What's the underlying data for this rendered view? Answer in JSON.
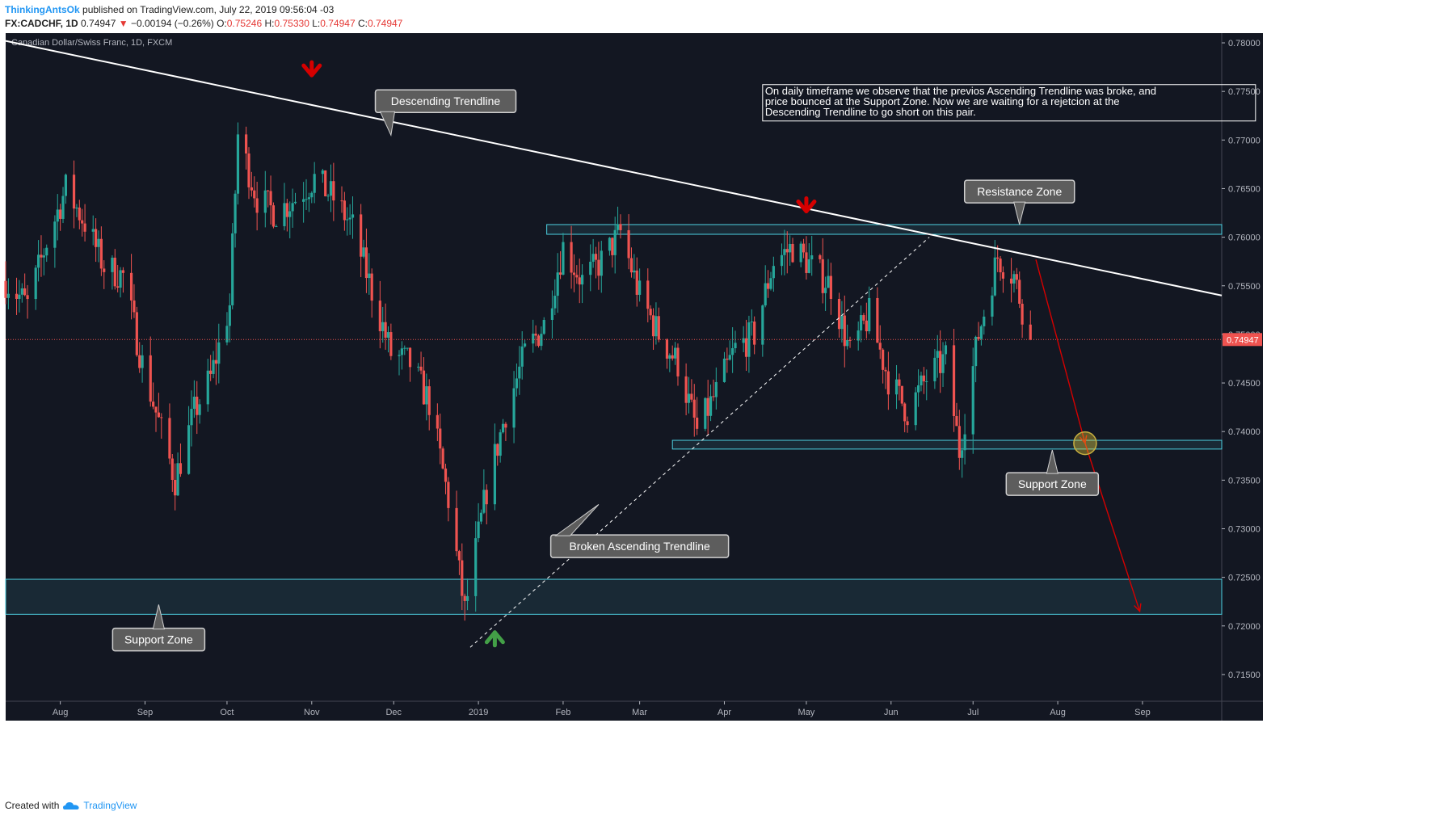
{
  "header": {
    "author": "ThinkingAntsOk",
    "published": "published on TradingView.com, July 22, 2019 09:56:04 -03",
    "symbol": "FX:CADCHF, 1D",
    "last": "0.74947",
    "change": "−0.00194 (−0.26%)",
    "o_label": "O:",
    "o_val": "0.75246",
    "h_label": "H:",
    "h_val": "0.75330",
    "l_label": "L:",
    "l_val": "0.74947",
    "c_label": "C:",
    "c_val": "0.74947"
  },
  "footer": {
    "created": "Created with",
    "brand": "TradingView"
  },
  "colors": {
    "bg": "#131722",
    "up": "#26a69a",
    "down": "#ef5350",
    "zone": "#4dd0e1",
    "trend": "#ffffff",
    "arrow_red": "#d50000",
    "arrow_green": "#43a047",
    "callout_bg": "#5d5d5d",
    "axis": "#b2b5be"
  },
  "chart_data": {
    "type": "candlestick",
    "symbol_title": "Canadian Dollar/Swiss Franc, 1D, FXCM",
    "last_price_label": "0.74947",
    "last_price": 0.74947,
    "ylim": [
      0.7125,
      0.781
    ],
    "y_ticks": [
      {
        "v": 0.78,
        "label": "0.78000"
      },
      {
        "v": 0.775,
        "label": "0.77500"
      },
      {
        "v": 0.77,
        "label": "0.77000"
      },
      {
        "v": 0.765,
        "label": "0.76500"
      },
      {
        "v": 0.76,
        "label": "0.76000"
      },
      {
        "v": 0.755,
        "label": "0.75500"
      },
      {
        "v": 0.75,
        "label": "0.75000"
      },
      {
        "v": 0.745,
        "label": "0.74500"
      },
      {
        "v": 0.74,
        "label": "0.74000"
      },
      {
        "v": 0.735,
        "label": "0.73500"
      },
      {
        "v": 0.73,
        "label": "0.73000"
      },
      {
        "v": 0.725,
        "label": "0.72500"
      },
      {
        "v": 0.72,
        "label": "0.72000"
      },
      {
        "v": 0.715,
        "label": "0.71500"
      }
    ],
    "x_range": [
      "2018-07-12",
      "2019-09-30"
    ],
    "x_ticks": [
      {
        "label": "Aug",
        "date": "2018-08-01"
      },
      {
        "label": "Sep",
        "date": "2018-09-01"
      },
      {
        "label": "Oct",
        "date": "2018-10-01"
      },
      {
        "label": "Nov",
        "date": "2018-11-01"
      },
      {
        "label": "Dec",
        "date": "2018-12-01"
      },
      {
        "label": "2019",
        "date": "2019-01-01"
      },
      {
        "label": "Feb",
        "date": "2019-02-01"
      },
      {
        "label": "Mar",
        "date": "2019-03-01"
      },
      {
        "label": "Apr",
        "date": "2019-04-01"
      },
      {
        "label": "May",
        "date": "2019-05-01"
      },
      {
        "label": "Jun",
        "date": "2019-06-01"
      },
      {
        "label": "Jul",
        "date": "2019-07-01"
      },
      {
        "label": "Aug",
        "date": "2019-08-01"
      },
      {
        "label": "Sep",
        "date": "2019-09-01"
      }
    ],
    "close_path": [
      [
        "2018-07-12",
        0.7555
      ],
      [
        "2018-07-20",
        0.753
      ],
      [
        "2018-07-27",
        0.7595
      ],
      [
        "2018-08-03",
        0.765
      ],
      [
        "2018-08-10",
        0.7615
      ],
      [
        "2018-08-17",
        0.757
      ],
      [
        "2018-08-24",
        0.756
      ],
      [
        "2018-08-31",
        0.747
      ],
      [
        "2018-09-07",
        0.74
      ],
      [
        "2018-09-12",
        0.735
      ],
      [
        "2018-09-19",
        0.742
      ],
      [
        "2018-09-25",
        0.7455
      ],
      [
        "2018-10-02",
        0.753
      ],
      [
        "2018-10-05",
        0.7705
      ],
      [
        "2018-10-12",
        0.764
      ],
      [
        "2018-10-19",
        0.7625
      ],
      [
        "2018-10-26",
        0.764
      ],
      [
        "2018-11-02",
        0.766
      ],
      [
        "2018-11-09",
        0.764
      ],
      [
        "2018-11-16",
        0.761
      ],
      [
        "2018-11-23",
        0.7545
      ],
      [
        "2018-11-30",
        0.748
      ],
      [
        "2018-12-07",
        0.747
      ],
      [
        "2018-12-14",
        0.743
      ],
      [
        "2018-12-21",
        0.733
      ],
      [
        "2018-12-27",
        0.7215
      ],
      [
        "2019-01-04",
        0.734
      ],
      [
        "2019-01-11",
        0.742
      ],
      [
        "2019-01-18",
        0.748
      ],
      [
        "2019-01-25",
        0.751
      ],
      [
        "2019-02-01",
        0.759
      ],
      [
        "2019-02-08",
        0.7555
      ],
      [
        "2019-02-15",
        0.7575
      ],
      [
        "2019-02-22",
        0.7605
      ],
      [
        "2019-03-01",
        0.754
      ],
      [
        "2019-03-08",
        0.75
      ],
      [
        "2019-03-15",
        0.747
      ],
      [
        "2019-03-22",
        0.74
      ],
      [
        "2019-03-29",
        0.744
      ],
      [
        "2019-04-05",
        0.7485
      ],
      [
        "2019-04-12",
        0.75
      ],
      [
        "2019-04-19",
        0.7575
      ],
      [
        "2019-04-26",
        0.759
      ],
      [
        "2019-05-03",
        0.757
      ],
      [
        "2019-05-10",
        0.755
      ],
      [
        "2019-05-17",
        0.748
      ],
      [
        "2019-05-24",
        0.752
      ],
      [
        "2019-05-31",
        0.7455
      ],
      [
        "2019-06-07",
        0.742
      ],
      [
        "2019-06-14",
        0.7455
      ],
      [
        "2019-06-21",
        0.7475
      ],
      [
        "2019-06-26",
        0.738
      ],
      [
        "2019-07-03",
        0.75
      ],
      [
        "2019-07-10",
        0.758
      ],
      [
        "2019-07-16",
        0.756
      ],
      [
        "2019-07-22",
        0.74947
      ]
    ],
    "zones": [
      {
        "name": "resistance-zone",
        "from": "2019-01-26",
        "to": "2019-09-30",
        "y1": 0.7603,
        "y2": 0.7613
      },
      {
        "name": "support-zone-right",
        "from": "2019-03-13",
        "to": "2019-09-30",
        "y1": 0.7382,
        "y2": 0.7391
      },
      {
        "name": "support-zone-left",
        "from": "2018-07-12",
        "to": "2019-09-30",
        "y1": 0.7212,
        "y2": 0.7248
      }
    ],
    "trendlines": [
      {
        "name": "descending-trendline",
        "style": "solid",
        "from": [
          "2018-07-12",
          0.7802
        ],
        "to": [
          "2019-09-30",
          0.754
        ]
      },
      {
        "name": "broken-ascending-trendline",
        "style": "dashed",
        "from": [
          "2018-12-29",
          0.7178
        ],
        "to": [
          "2019-06-15",
          0.76
        ]
      }
    ],
    "projection": [
      [
        "2019-07-24",
        0.7577
      ],
      [
        "2019-08-11",
        0.7388
      ],
      [
        "2019-08-31",
        0.7215
      ]
    ],
    "projection_circle": [
      "2019-08-11",
      0.7388
    ],
    "arrows": [
      {
        "name": "red-down-arrow-1",
        "color": "red",
        "dir": "down",
        "date": "2018-11-01",
        "y": 0.777
      },
      {
        "name": "red-down-arrow-2",
        "color": "red",
        "dir": "down",
        "date": "2019-05-01",
        "y": 0.763
      },
      {
        "name": "green-up-arrow",
        "color": "green",
        "dir": "up",
        "date": "2019-01-07",
        "y": 0.719
      }
    ],
    "annotations": [
      {
        "name": "callout-descending-trendline",
        "text": "Descending Trendline",
        "date": "2018-12-20",
        "y": 0.774,
        "tail": "down-left",
        "tail_to": [
          "2018-11-30",
          0.7705
        ]
      },
      {
        "name": "callout-resistance-zone",
        "text": "Resistance Zone",
        "date": "2019-07-18",
        "y": 0.7647,
        "tail": "down",
        "tail_to": [
          "2019-07-18",
          0.7613
        ]
      },
      {
        "name": "callout-support-zone-right",
        "text": "Support Zone",
        "date": "2019-07-30",
        "y": 0.7346,
        "tail": "up",
        "tail_to": [
          "2019-07-30",
          0.7381
        ]
      },
      {
        "name": "callout-broken-ascending",
        "text": "Broken Ascending Trendline",
        "date": "2019-03-01",
        "y": 0.7282,
        "tail": "up-left",
        "tail_to": [
          "2019-02-14",
          0.7325
        ]
      },
      {
        "name": "callout-support-zone-left",
        "text": "Support Zone",
        "date": "2018-09-06",
        "y": 0.7186,
        "tail": "up",
        "tail_to": [
          "2018-09-06",
          0.7222
        ]
      }
    ],
    "note": "On daily timeframe we observe that the previos Ascending Trendline was broke, and price bounced at the Support Zone. Now we are waiting for a rejetcion at the Descending Trendline to go short on this pair.",
    "note_anchor": [
      "2019-04-15",
      0.7757
    ]
  }
}
